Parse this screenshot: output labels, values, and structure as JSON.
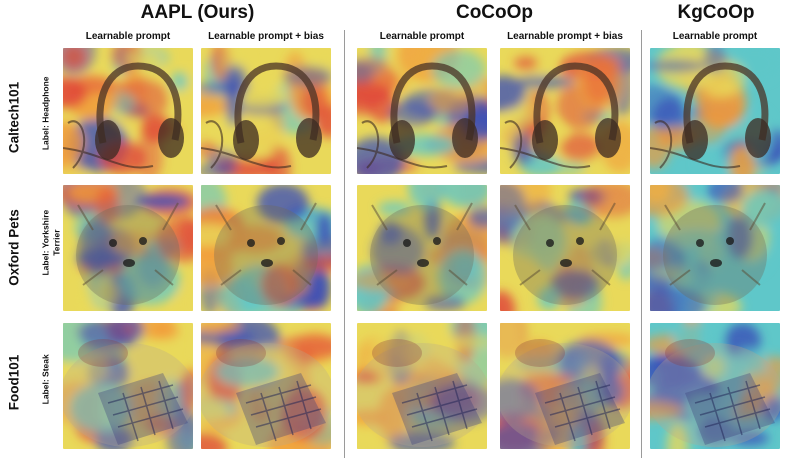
{
  "methods": [
    {
      "name": "AAPL (Ours)",
      "columns": [
        "Learnable prompt",
        "Learnable prompt + bias"
      ]
    },
    {
      "name": "CoCoOp",
      "columns": [
        "Learnable prompt",
        "Learnable prompt + bias"
      ]
    },
    {
      "name": "KgCoOp",
      "columns": [
        "Learnable prompt"
      ]
    }
  ],
  "rows": [
    {
      "dataset": "Caltech101",
      "label_lines": [
        "Label: Headphone"
      ],
      "subject": "headphone"
    },
    {
      "dataset": "Oxford Pets",
      "label_lines": [
        "Label: Yorkshire",
        "Terrier"
      ],
      "subject": "dog"
    },
    {
      "dataset": "Food101",
      "label_lines": [
        "Label: Steak"
      ],
      "subject": "steak"
    }
  ],
  "colors": {
    "heat_red": "#e0463a",
    "heat_orange": "#f29a3a",
    "heat_yellow": "#e9d95a",
    "heat_cyan": "#5fc7c9",
    "heat_blue": "#3a4fb8",
    "divider": "#9a9a9a"
  }
}
